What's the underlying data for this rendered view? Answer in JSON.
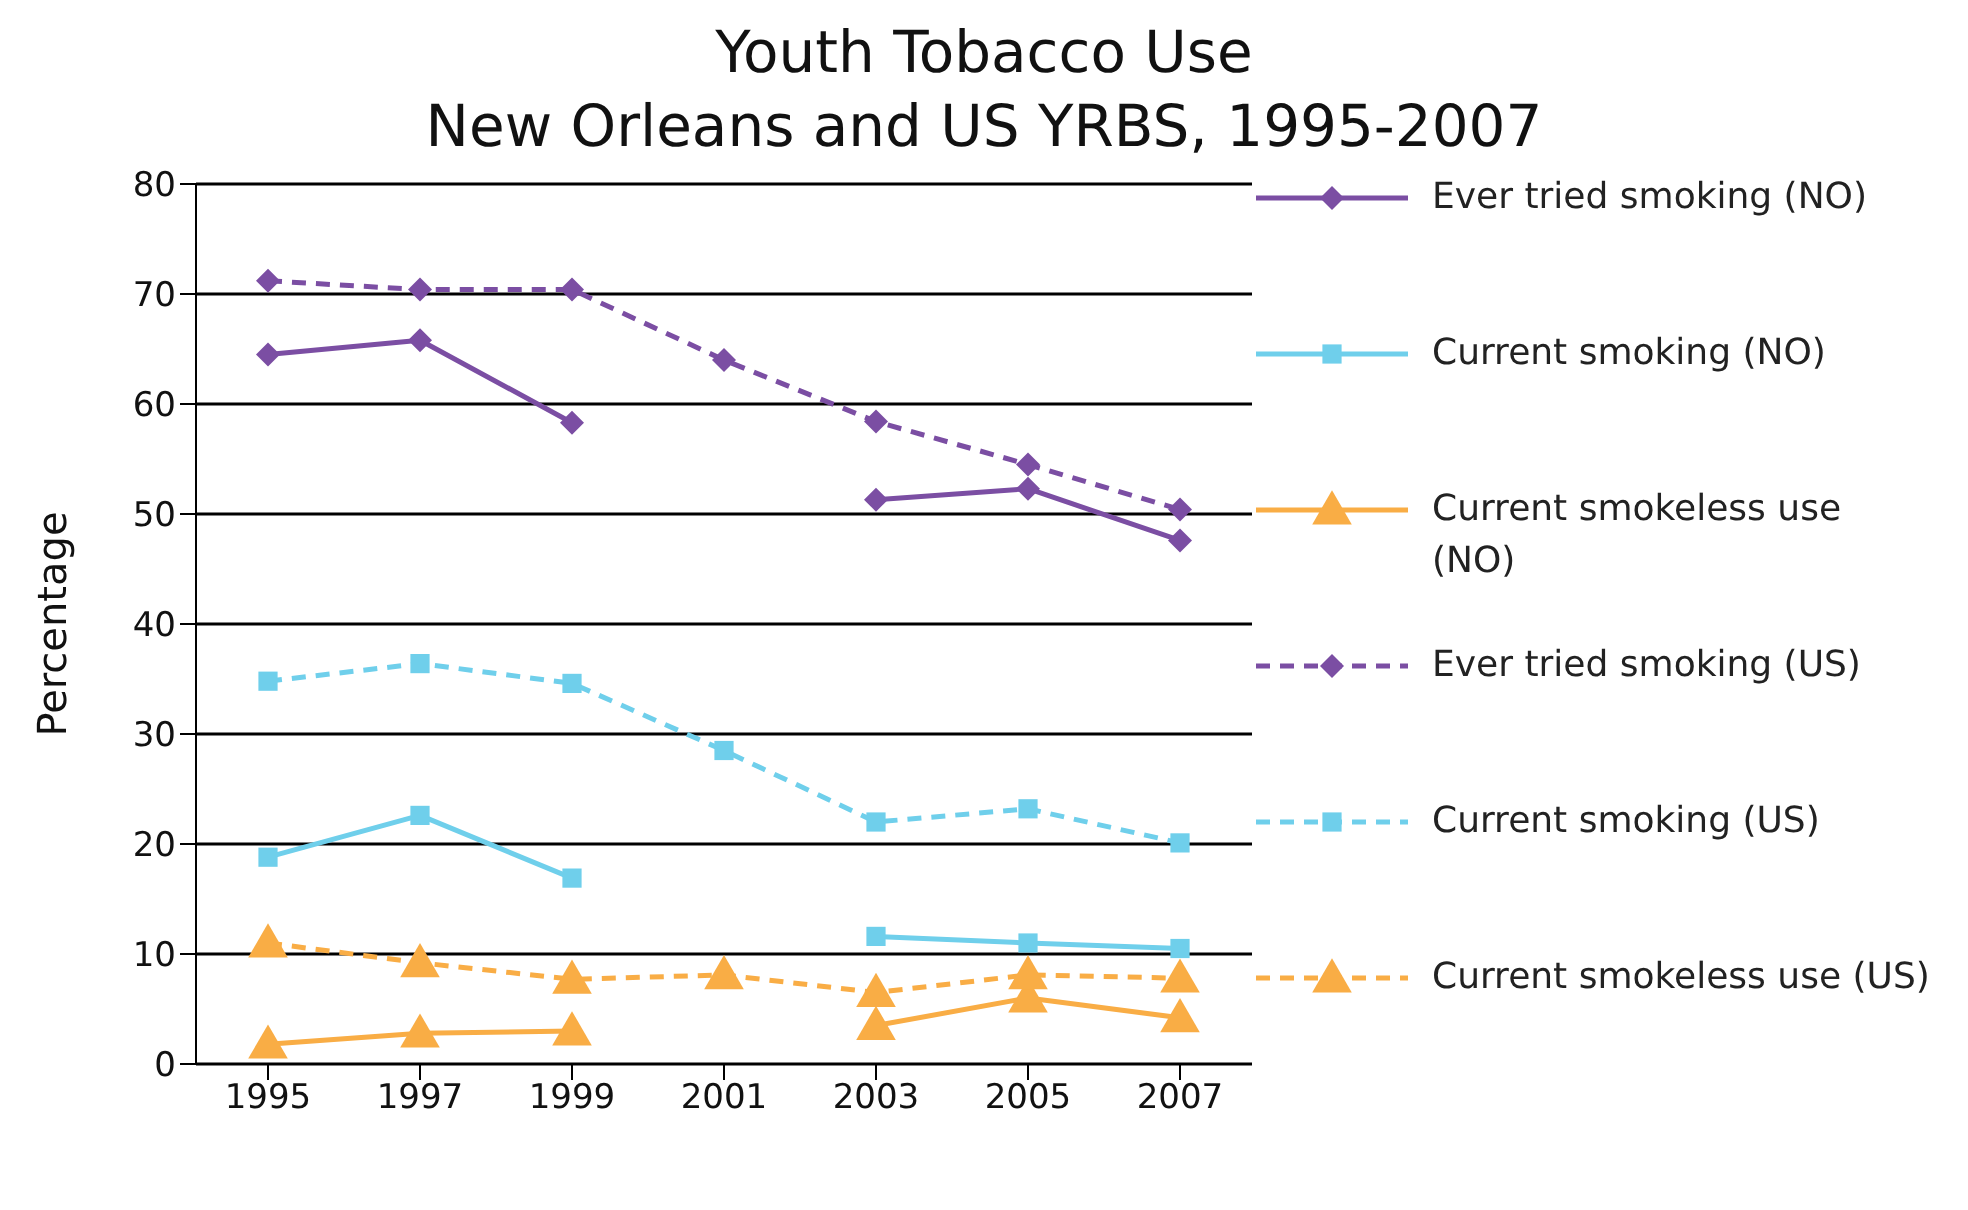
{
  "chart_data": {
    "type": "line",
    "title": "Youth Tobacco Use\nNew Orleans and US YRBS, 1995-2007",
    "ylabel": "Percentage",
    "categories": [
      "1995",
      "1997",
      "1999",
      "2001",
      "2003",
      "2005",
      "2007"
    ],
    "ylim": [
      0,
      80
    ],
    "yticks": [
      0,
      10,
      20,
      30,
      40,
      50,
      60,
      70,
      80
    ],
    "grid": "y",
    "legend": "right",
    "series": [
      {
        "name": "Ever tried smoking (NO)",
        "color": "#7b4ea3",
        "marker": "diamond",
        "line_style": "solid",
        "values": [
          64.5,
          65.8,
          58.3,
          null,
          51.3,
          52.3,
          47.6
        ]
      },
      {
        "name": "Current smoking (NO)",
        "color": "#6fcfeb",
        "marker": "square",
        "line_style": "solid",
        "values": [
          18.8,
          22.6,
          16.9,
          null,
          11.6,
          11.0,
          10.5
        ]
      },
      {
        "name": "Current smokeless use (NO)",
        "color": "#f9ad45",
        "marker": "triangle",
        "line_style": "solid",
        "values": [
          1.8,
          2.8,
          3.0,
          null,
          3.5,
          6.0,
          4.2
        ]
      },
      {
        "name": "Ever tried smoking (US)",
        "color": "#7b4ea3",
        "marker": "diamond",
        "line_style": "dashed",
        "values": [
          71.2,
          70.4,
          70.4,
          64.0,
          58.4,
          54.5,
          50.4
        ]
      },
      {
        "name": "Current smoking (US)",
        "color": "#6fcfeb",
        "marker": "square",
        "line_style": "dashed",
        "values": [
          34.8,
          36.4,
          34.6,
          28.5,
          22.0,
          23.2,
          20.1
        ]
      },
      {
        "name": "Current smokeless use (US)",
        "color": "#f9ad45",
        "marker": "triangle",
        "line_style": "dashed",
        "values": [
          11.0,
          9.2,
          7.7,
          8.1,
          6.5,
          8.1,
          7.8
        ]
      }
    ]
  }
}
